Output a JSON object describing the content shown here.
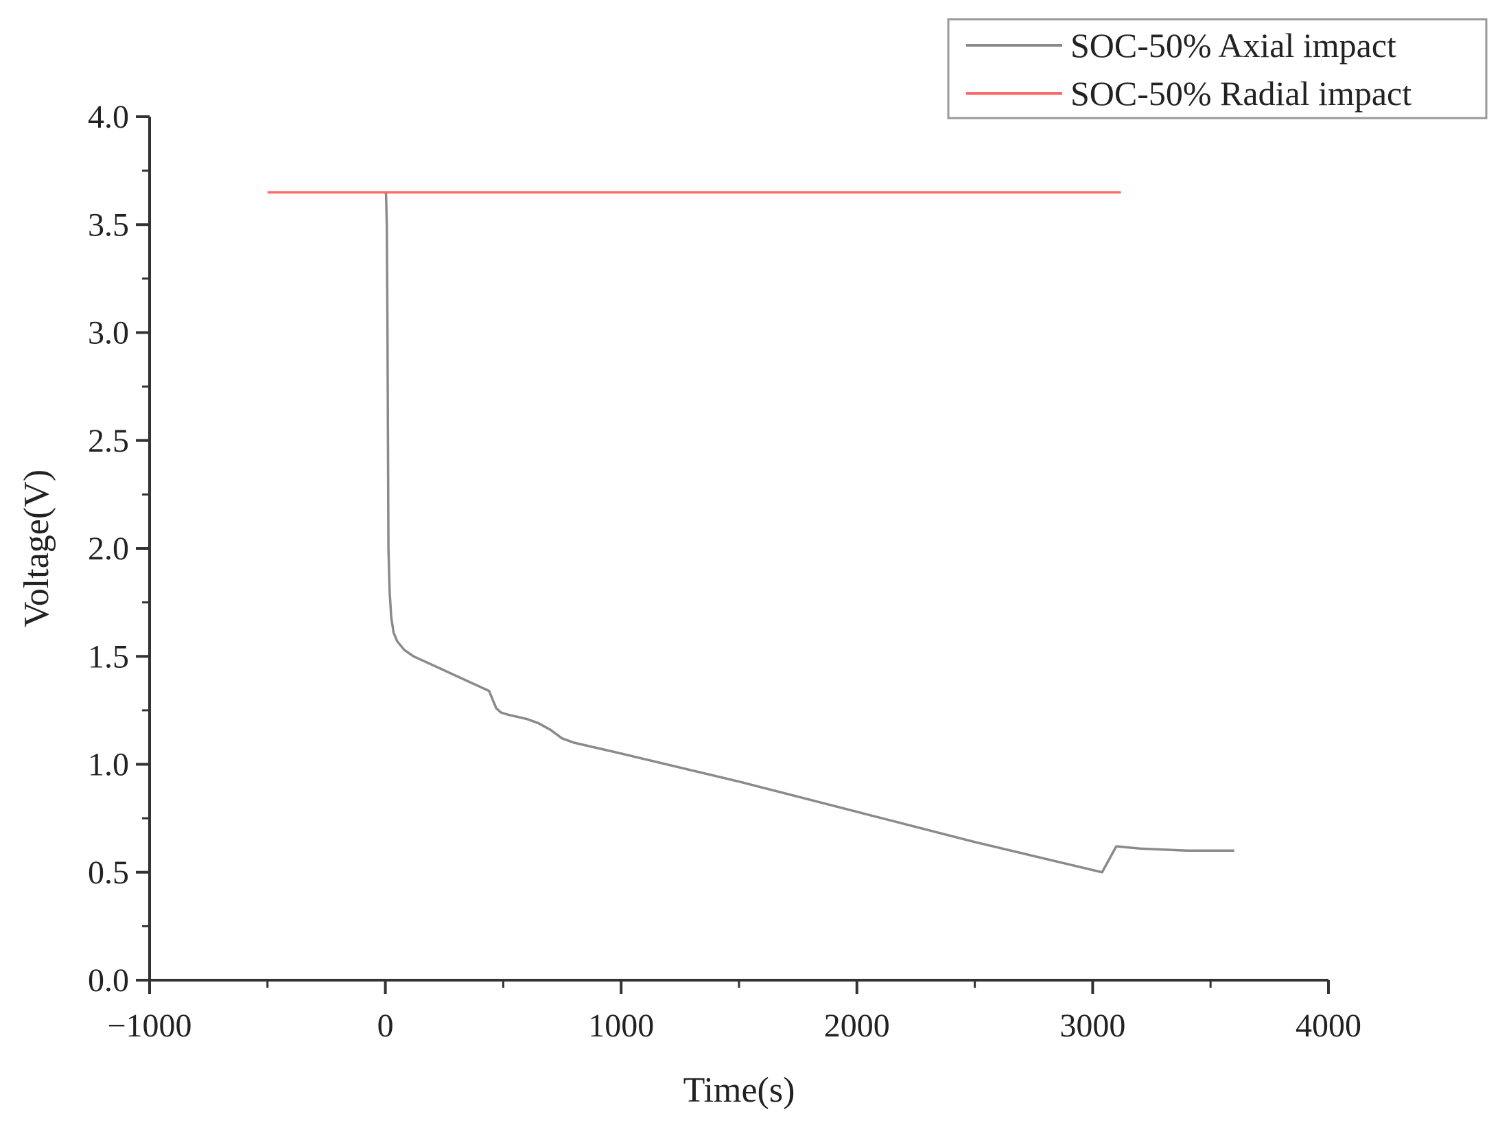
{
  "chart_data": {
    "type": "line",
    "xlabel": "Time(s)",
    "ylabel": "Voltage(V)",
    "xlim": [
      -1000,
      4000
    ],
    "ylim": [
      0.0,
      4.0
    ],
    "x_ticks": [
      -1000,
      0,
      1000,
      2000,
      3000,
      4000
    ],
    "x_tick_labels": [
      "−1000",
      "0",
      "1000",
      "2000",
      "3000",
      "4000"
    ],
    "y_ticks": [
      0.0,
      0.5,
      1.0,
      1.5,
      2.0,
      2.5,
      3.0,
      3.5,
      4.0
    ],
    "y_tick_labels": [
      "0.0",
      "0.5",
      "1.0",
      "1.5",
      "2.0",
      "2.5",
      "3.0",
      "3.5",
      "4.0"
    ],
    "legend_position": "top-right",
    "grid": false,
    "series": [
      {
        "name": "SOC-50% Axial impact",
        "color": "#8a8a8a",
        "points": [
          [
            0,
            3.65
          ],
          [
            3,
            3.64
          ],
          [
            6,
            3.5
          ],
          [
            9,
            3.0
          ],
          [
            11,
            2.5
          ],
          [
            13,
            2.0
          ],
          [
            18,
            1.8
          ],
          [
            25,
            1.68
          ],
          [
            35,
            1.61
          ],
          [
            50,
            1.57
          ],
          [
            80,
            1.53
          ],
          [
            120,
            1.5
          ],
          [
            200,
            1.46
          ],
          [
            300,
            1.41
          ],
          [
            400,
            1.36
          ],
          [
            440,
            1.34
          ],
          [
            455,
            1.3
          ],
          [
            470,
            1.26
          ],
          [
            490,
            1.24
          ],
          [
            520,
            1.23
          ],
          [
            600,
            1.21
          ],
          [
            650,
            1.19
          ],
          [
            700,
            1.16
          ],
          [
            750,
            1.12
          ],
          [
            800,
            1.1
          ],
          [
            1000,
            1.05
          ],
          [
            1500,
            0.92
          ],
          [
            2000,
            0.78
          ],
          [
            2500,
            0.64
          ],
          [
            3000,
            0.51
          ],
          [
            3040,
            0.5
          ],
          [
            3100,
            0.62
          ],
          [
            3200,
            0.61
          ],
          [
            3400,
            0.6
          ],
          [
            3600,
            0.6
          ]
        ]
      },
      {
        "name": "SOC-50% Radial impact",
        "color": "#ff6a6a",
        "points": [
          [
            -500,
            3.65
          ],
          [
            3120,
            3.65
          ]
        ]
      }
    ]
  }
}
